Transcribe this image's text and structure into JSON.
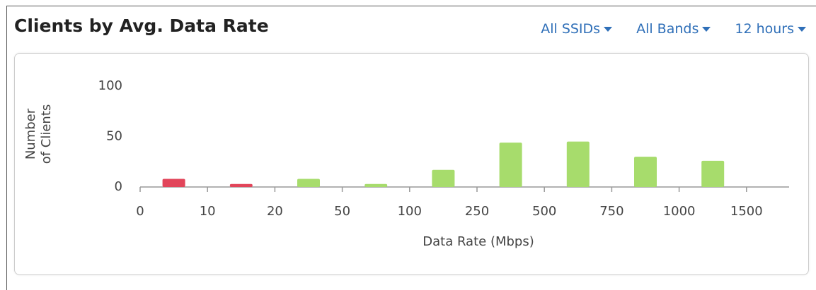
{
  "header": {
    "title": "Clients by Avg. Data Rate",
    "filters": [
      "All SSIDs",
      "All Bands",
      "12 hours"
    ]
  },
  "chart_data": {
    "type": "histogram",
    "x_label": "Data Rate (Mbps)",
    "y_label": "Number of Clients",
    "bins": [
      0,
      10,
      20,
      50,
      100,
      250,
      500,
      750,
      1000,
      1500
    ],
    "x_scale": "ordinal",
    "counts": [
      8,
      3,
      8,
      3,
      17,
      44,
      45,
      30,
      26
    ],
    "colors": [
      "#e2455a",
      "#e2455a",
      "#a7dc6c",
      "#a7dc6c",
      "#a7dc6c",
      "#a7dc6c",
      "#a7dc6c",
      "#a7dc6c",
      "#a7dc6c"
    ],
    "ylim": [
      0,
      100
    ],
    "yticks": [
      0,
      50,
      100
    ],
    "grid": false
  }
}
